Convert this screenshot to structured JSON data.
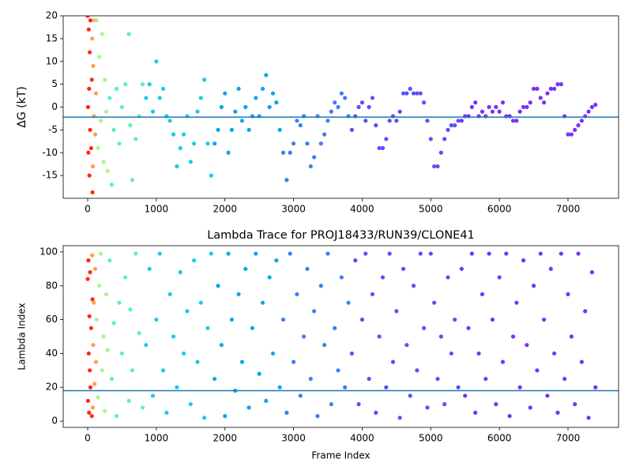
{
  "chart_data": [
    {
      "type": "scatter",
      "ylabel": "ΔG (kT)",
      "xlim": [
        -357,
        7737
      ],
      "ylim": [
        -20,
        20
      ],
      "xticks": [
        0,
        1000,
        2000,
        3000,
        4000,
        5000,
        6000,
        7000
      ],
      "yticks": [
        -15,
        -10,
        -5,
        0,
        5,
        10,
        15,
        20
      ],
      "hline": {
        "value": -2.2,
        "color": "#1f77b4"
      },
      "series": [
        {
          "color": "#ff2a15",
          "x": [
            0,
            5,
            10,
            15,
            20,
            25,
            30,
            35,
            40,
            50,
            60,
            70
          ],
          "values": [
            20,
            0,
            -10,
            17,
            4,
            -15,
            12,
            -5,
            19,
            -9,
            6,
            -18.7
          ]
        },
        {
          "color": "#ffa050",
          "x": [
            65,
            75,
            80,
            90,
            100,
            110,
            120
          ],
          "values": [
            15,
            -13,
            9,
            -2,
            19,
            -6,
            3
          ]
        },
        {
          "color": "#a6f68e",
          "x": [
            130,
            150,
            170,
            190,
            210,
            230,
            250,
            270,
            290
          ],
          "values": [
            19,
            -9,
            11,
            -3,
            16,
            -12,
            6,
            -1,
            -14
          ]
        },
        {
          "color": "#5ef0c0",
          "x": [
            320,
            350,
            380,
            420,
            460,
            500,
            550,
            600,
            620,
            650,
            700,
            750,
            800
          ],
          "values": [
            2,
            -17,
            -5,
            4,
            -8,
            0,
            5,
            16,
            -4,
            -16,
            -7,
            -2,
            5
          ]
        },
        {
          "color": "#1ecbe6",
          "x": [
            850,
            900,
            950,
            1000,
            1050,
            1100,
            1150,
            1200,
            1250,
            1300,
            1350,
            1400,
            1450,
            1500,
            1550,
            1600,
            1650,
            1700,
            1750,
            1800
          ],
          "values": [
            2,
            5,
            -1,
            10,
            2,
            4,
            -2,
            -3,
            -6,
            -13,
            -9,
            -6,
            -2,
            -12,
            -8,
            -1,
            2,
            6,
            -8,
            -15
          ]
        },
        {
          "color": "#0ea5ed",
          "x": [
            1850,
            1900,
            1950,
            2000,
            2050,
            2100,
            2150,
            2200,
            2250,
            2300,
            2350,
            2400,
            2450,
            2500,
            2550,
            2600,
            2650,
            2700,
            2750,
            2800
          ],
          "values": [
            -8,
            -5,
            0,
            3,
            -10,
            -5,
            -1,
            4,
            -3,
            0,
            -5,
            -2,
            2,
            -2,
            4,
            7,
            0,
            3,
            1,
            -5
          ]
        },
        {
          "color": "#3c7ef4",
          "x": [
            2850,
            2900,
            2950,
            3000,
            3050,
            3100,
            3150,
            3200,
            3250,
            3300,
            3350,
            3400,
            3450,
            3500,
            3550,
            3600,
            3650,
            3700,
            3750,
            3800
          ],
          "values": [
            -10,
            -16,
            -10,
            -8,
            -3,
            -4,
            -2,
            -8,
            -13,
            -11,
            -2,
            -8,
            -6,
            -3,
            -1,
            1,
            0,
            3,
            2,
            -2
          ]
        },
        {
          "color": "#5a50fa",
          "x": [
            3850,
            3900,
            3950,
            4000,
            4050,
            4100,
            4150,
            4200,
            4250,
            4300,
            4350,
            4400,
            4450,
            4500,
            4550,
            4600,
            4650,
            4700,
            4750,
            4800,
            4850,
            4900,
            4950,
            5000,
            5050,
            5100,
            5150,
            5200,
            5250,
            5300,
            5350,
            5400
          ],
          "values": [
            -5,
            -2,
            0,
            1,
            -3,
            0,
            2,
            -4,
            -9,
            -9,
            -7,
            -3,
            -2,
            -3,
            -1,
            3,
            3,
            4,
            3,
            3,
            3,
            1,
            -3,
            -7,
            -13,
            -13,
            -10,
            -7,
            -5,
            -4,
            -4,
            -3
          ]
        },
        {
          "color": "#7830ff",
          "x": [
            5450,
            5500,
            5550,
            5600,
            5650,
            5700,
            5750,
            5800,
            5850,
            5900,
            5950,
            6000,
            6050,
            6100,
            6150,
            6200,
            6250,
            6300,
            6350,
            6400,
            6450,
            6500,
            6550,
            6600,
            6650,
            6700,
            6750,
            6800,
            6850,
            6900,
            6950,
            7000,
            7050,
            7100,
            7150,
            7200,
            7250,
            7300,
            7350,
            7400
          ],
          "values": [
            -3,
            -2,
            -2,
            0,
            1,
            -2,
            -1,
            -2,
            0,
            -1,
            0,
            -1,
            1,
            -2,
            -2,
            -3,
            -3,
            -1,
            0,
            0,
            1,
            4,
            4,
            2,
            1,
            3,
            4,
            4,
            5,
            5,
            -2,
            -6,
            -6,
            -5,
            -4,
            -3,
            -2,
            -1,
            0,
            0.5
          ]
        }
      ]
    },
    {
      "type": "scatter",
      "title": "Lambda Trace for PROJ18433/RUN39/CLONE41",
      "xlabel": "Frame Index",
      "ylabel": "Lambda Index",
      "xlim": [
        -357,
        7737
      ],
      "ylim": [
        -3.7,
        103.7
      ],
      "xticks": [
        0,
        1000,
        2000,
        3000,
        4000,
        5000,
        6000,
        7000
      ],
      "yticks": [
        0,
        20,
        40,
        60,
        80,
        100
      ],
      "hline": {
        "value": 18,
        "color": "#1f77b4"
      },
      "series": [
        {
          "color": "#ff2a15",
          "x": [
            0,
            5,
            10,
            15,
            20,
            25,
            30,
            35,
            40,
            50,
            60,
            70
          ],
          "values": [
            84,
            12,
            95,
            40,
            5,
            62,
            30,
            88,
            20,
            55,
            3,
            72
          ]
        },
        {
          "color": "#ffa050",
          "x": [
            65,
            75,
            80,
            90,
            100,
            110,
            120
          ],
          "values": [
            98,
            8,
            45,
            70,
            22,
            90,
            35
          ]
        },
        {
          "color": "#a6f68e",
          "x": [
            130,
            150,
            170,
            190,
            210,
            230,
            250,
            270,
            290
          ],
          "values": [
            60,
            14,
            80,
            99,
            30,
            50,
            6,
            75,
            42
          ]
        },
        {
          "color": "#5ef0c0",
          "x": [
            320,
            350,
            380,
            420,
            460,
            500,
            550,
            600,
            620,
            650,
            700,
            750,
            800
          ],
          "values": [
            95,
            25,
            58,
            3,
            70,
            40,
            85,
            12,
            66,
            30,
            99,
            52,
            8
          ]
        },
        {
          "color": "#1ecbe6",
          "x": [
            850,
            900,
            950,
            1000,
            1050,
            1100,
            1150,
            1200,
            1250,
            1300,
            1350,
            1400,
            1450,
            1500,
            1550,
            1600,
            1650,
            1700,
            1750,
            1800
          ],
          "values": [
            45,
            90,
            15,
            60,
            99,
            30,
            5,
            75,
            50,
            20,
            88,
            40,
            65,
            10,
            95,
            35,
            70,
            2,
            55,
            99
          ]
        },
        {
          "color": "#0ea5ed",
          "x": [
            1850,
            1900,
            1950,
            2000,
            2050,
            2100,
            2150,
            2200,
            2250,
            2300,
            2350,
            2400,
            2450,
            2500,
            2550,
            2600,
            2650,
            2700,
            2750,
            2800
          ],
          "values": [
            25,
            80,
            45,
            3,
            99,
            60,
            18,
            75,
            35,
            90,
            8,
            55,
            99,
            28,
            70,
            12,
            85,
            40,
            95,
            20
          ]
        },
        {
          "color": "#3c7ef4",
          "x": [
            2850,
            2900,
            2950,
            3000,
            3050,
            3100,
            3150,
            3200,
            3250,
            3300,
            3350,
            3400,
            3450,
            3500,
            3550,
            3600,
            3650,
            3700,
            3750,
            3800
          ],
          "values": [
            60,
            5,
            99,
            35,
            75,
            15,
            50,
            90,
            25,
            65,
            3,
            80,
            45,
            99,
            10,
            55,
            30,
            85,
            20,
            70
          ]
        },
        {
          "color": "#5a50fa",
          "x": [
            3850,
            3900,
            3950,
            4000,
            4050,
            4100,
            4150,
            4200,
            4250,
            4300,
            4350,
            4400,
            4450,
            4500,
            4550,
            4600,
            4650,
            4700,
            4750,
            4800,
            4850,
            4900,
            4950,
            5000,
            5050,
            5100,
            5150,
            5200,
            5250,
            5300,
            5350,
            5400
          ],
          "values": [
            40,
            95,
            10,
            60,
            99,
            25,
            75,
            5,
            50,
            85,
            20,
            99,
            35,
            65,
            2,
            90,
            45,
            15,
            80,
            30,
            99,
            55,
            8,
            99,
            70,
            25,
            50,
            10,
            85,
            40,
            60,
            20
          ]
        },
        {
          "color": "#7830ff",
          "x": [
            5450,
            5500,
            5550,
            5600,
            5650,
            5700,
            5750,
            5800,
            5850,
            5900,
            5950,
            6000,
            6050,
            6100,
            6150,
            6200,
            6250,
            6300,
            6350,
            6400,
            6450,
            6500,
            6550,
            6600,
            6650,
            6700,
            6750,
            6800,
            6850,
            6900,
            6950,
            7000,
            7050,
            7100,
            7150,
            7200,
            7250,
            7300,
            7350,
            7400
          ],
          "values": [
            90,
            15,
            55,
            99,
            5,
            40,
            75,
            25,
            99,
            60,
            10,
            85,
            35,
            99,
            3,
            50,
            70,
            20,
            95,
            45,
            8,
            80,
            30,
            99,
            60,
            15,
            90,
            40,
            5,
            99,
            25,
            75,
            50,
            10,
            99,
            35,
            65,
            2,
            88,
            20
          ]
        }
      ]
    }
  ]
}
